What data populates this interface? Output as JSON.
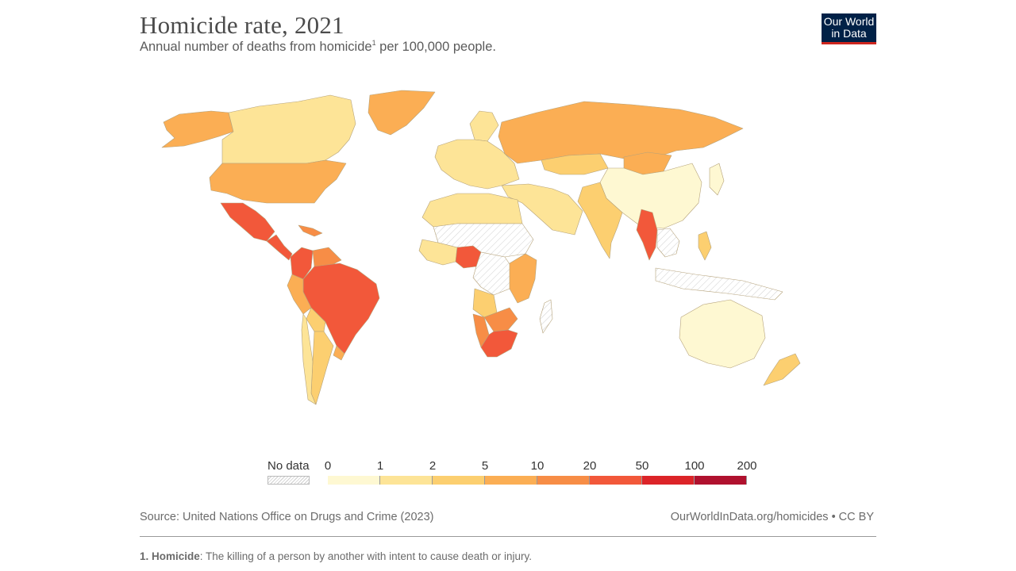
{
  "header": {
    "title": "Homicide rate, 2021",
    "subtitle_main": "Annual number of deaths from homicide",
    "subtitle_sup": "1",
    "subtitle_rest": " per 100,000 people."
  },
  "logo": {
    "line1": "Our World",
    "line2": "in Data"
  },
  "legend": {
    "no_data_label": "No data",
    "no_data_color": "#ffffff",
    "bins": [
      {
        "from": "0",
        "to": "1",
        "color": "#fef8d2"
      },
      {
        "from": "1",
        "to": "2",
        "color": "#fde497"
      },
      {
        "from": "2",
        "to": "5",
        "color": "#fccf70"
      },
      {
        "from": "5",
        "to": "10",
        "color": "#fbae54"
      },
      {
        "from": "10",
        "to": "20",
        "color": "#f78d46"
      },
      {
        "from": "20",
        "to": "50",
        "color": "#f2583a"
      },
      {
        "from": "50",
        "to": "100",
        "color": "#dc2428"
      },
      {
        "from": "100",
        "to": "200",
        "color": "#b0112e"
      }
    ],
    "ticks": [
      "0",
      "1",
      "2",
      "5",
      "10",
      "20",
      "50",
      "100",
      "200"
    ]
  },
  "regions": [
    {
      "name": "Alaska",
      "color": "#fbae54"
    },
    {
      "name": "Canada",
      "color": "#fde497"
    },
    {
      "name": "Greenland",
      "color": "#fbae54"
    },
    {
      "name": "United States",
      "color": "#fbae54"
    },
    {
      "name": "Mexico",
      "color": "#f2583a"
    },
    {
      "name": "Central America",
      "color": "#f2583a"
    },
    {
      "name": "Caribbean",
      "color": "#f78d46"
    },
    {
      "name": "Colombia",
      "color": "#f2583a"
    },
    {
      "name": "Venezuela",
      "color": "#f78d46"
    },
    {
      "name": "Brazil",
      "color": "#f2583a"
    },
    {
      "name": "Peru",
      "color": "#fbae54"
    },
    {
      "name": "Bolivia",
      "color": "#fccf70"
    },
    {
      "name": "Argentina",
      "color": "#fccf70"
    },
    {
      "name": "Chile",
      "color": "#fde497"
    },
    {
      "name": "Uruguay",
      "color": "#fbae54"
    },
    {
      "name": "Europe",
      "color": "#fde497"
    },
    {
      "name": "Scandinavia",
      "color": "#fde497"
    },
    {
      "name": "Russia",
      "color": "#fbae54"
    },
    {
      "name": "Kazakhstan",
      "color": "#fccf70"
    },
    {
      "name": "Mongolia",
      "color": "#fbae54"
    },
    {
      "name": "China",
      "color": "#fef8d2"
    },
    {
      "name": "Japan",
      "color": "#fef8d2"
    },
    {
      "name": "Middle East",
      "color": "#fde497"
    },
    {
      "name": "India",
      "color": "#fccf70"
    },
    {
      "name": "Myanmar",
      "color": "#f2583a"
    },
    {
      "name": "Southeast Asia",
      "color": "#ffffff"
    },
    {
      "name": "Indonesia",
      "color": "#ffffff"
    },
    {
      "name": "Philippines",
      "color": "#fccf70"
    },
    {
      "name": "North Africa",
      "color": "#fde497"
    },
    {
      "name": "Sahel",
      "color": "#ffffff"
    },
    {
      "name": "West Africa",
      "color": "#fde497"
    },
    {
      "name": "Nigeria",
      "color": "#f2583a"
    },
    {
      "name": "Central Africa",
      "color": "#ffffff"
    },
    {
      "name": "East Africa",
      "color": "#fbae54"
    },
    {
      "name": "Angola",
      "color": "#fccf70"
    },
    {
      "name": "Namibia",
      "color": "#f78d46"
    },
    {
      "name": "Botswana",
      "color": "#f78d46"
    },
    {
      "name": "South Africa",
      "color": "#f2583a"
    },
    {
      "name": "Madagascar",
      "color": "#ffffff"
    },
    {
      "name": "Australia",
      "color": "#fef8d2"
    },
    {
      "name": "New Zealand",
      "color": "#fccf70"
    }
  ],
  "footer": {
    "source": "Source: United Nations Office on Drugs and Crime (2023)",
    "url": "OurWorldInData.org/homicides • CC BY",
    "footnote_label": "1. Homicide",
    "footnote_text": ": The killing of a person by another with intent to cause death or injury."
  }
}
